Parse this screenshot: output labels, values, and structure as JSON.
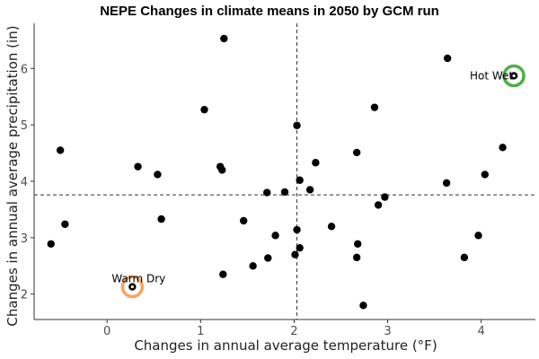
{
  "chart_data": {
    "type": "scatter",
    "title": "NEPE Changes in climate means in 2050 by GCM run",
    "xlabel": "Changes in annual average temperature (°F)",
    "ylabel": "Changes in annual average precipitation (in)",
    "xlim": [
      -0.78,
      4.58
    ],
    "ylim": [
      1.55,
      6.8
    ],
    "xticks": [
      0,
      1,
      2,
      3,
      4
    ],
    "yticks": [
      2,
      3,
      4,
      5,
      6
    ],
    "grid": false,
    "reference_lines": {
      "x": 2.03,
      "y": 3.76
    },
    "points": [
      {
        "x": -0.5,
        "y": 4.55
      },
      {
        "x": -0.45,
        "y": 3.24
      },
      {
        "x": -0.6,
        "y": 2.89
      },
      {
        "x": 0.33,
        "y": 4.26
      },
      {
        "x": 0.54,
        "y": 4.12
      },
      {
        "x": 0.58,
        "y": 3.33
      },
      {
        "x": 1.04,
        "y": 5.27
      },
      {
        "x": 1.21,
        "y": 4.26
      },
      {
        "x": 1.23,
        "y": 4.2
      },
      {
        "x": 1.25,
        "y": 6.53
      },
      {
        "x": 1.24,
        "y": 2.35
      },
      {
        "x": 1.46,
        "y": 3.3
      },
      {
        "x": 1.56,
        "y": 2.5
      },
      {
        "x": 1.71,
        "y": 3.8
      },
      {
        "x": 1.72,
        "y": 2.64
      },
      {
        "x": 1.8,
        "y": 3.04
      },
      {
        "x": 1.9,
        "y": 3.81
      },
      {
        "x": 2.03,
        "y": 4.99
      },
      {
        "x": 2.06,
        "y": 4.02
      },
      {
        "x": 2.03,
        "y": 3.14
      },
      {
        "x": 2.06,
        "y": 2.82
      },
      {
        "x": 2.01,
        "y": 2.7
      },
      {
        "x": 2.17,
        "y": 3.85
      },
      {
        "x": 2.23,
        "y": 4.33
      },
      {
        "x": 2.4,
        "y": 3.2
      },
      {
        "x": 2.67,
        "y": 4.51
      },
      {
        "x": 2.68,
        "y": 2.89
      },
      {
        "x": 2.67,
        "y": 2.65
      },
      {
        "x": 2.74,
        "y": 1.8
      },
      {
        "x": 2.86,
        "y": 5.31
      },
      {
        "x": 2.9,
        "y": 3.58
      },
      {
        "x": 2.97,
        "y": 3.72
      },
      {
        "x": 3.64,
        "y": 6.18
      },
      {
        "x": 3.63,
        "y": 3.97
      },
      {
        "x": 3.82,
        "y": 2.65
      },
      {
        "x": 3.97,
        "y": 3.04
      },
      {
        "x": 4.04,
        "y": 4.12
      },
      {
        "x": 4.23,
        "y": 4.6
      }
    ],
    "highlights": [
      {
        "label": "Warm Dry",
        "x": 0.27,
        "y": 2.13,
        "color": "#f4a460"
      },
      {
        "label": "Hot Wet",
        "x": 4.35,
        "y": 5.87,
        "color": "#4daf4a"
      }
    ]
  }
}
